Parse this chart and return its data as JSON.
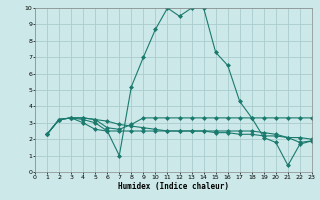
{
  "xlabel": "Humidex (Indice chaleur)",
  "bg_color": "#cce8e8",
  "grid_color": "#aacccc",
  "line_color": "#1a7a6e",
  "xlim": [
    0,
    23
  ],
  "ylim": [
    0,
    10
  ],
  "xticks": [
    0,
    1,
    2,
    3,
    4,
    5,
    6,
    7,
    8,
    9,
    10,
    11,
    12,
    13,
    14,
    15,
    16,
    17,
    18,
    19,
    20,
    21,
    22,
    23
  ],
  "yticks": [
    0,
    1,
    2,
    3,
    4,
    5,
    6,
    7,
    8,
    9,
    10
  ],
  "line1_x": [
    1,
    2,
    3,
    4,
    5,
    6,
    7,
    8,
    9,
    10,
    11,
    12,
    13,
    14,
    15,
    16,
    17,
    18,
    19,
    20,
    21,
    22,
    23
  ],
  "line1_y": [
    2.3,
    3.2,
    3.3,
    3.2,
    3.0,
    2.5,
    1.0,
    5.2,
    7.0,
    8.7,
    10.0,
    9.5,
    10.0,
    10.0,
    7.3,
    6.5,
    4.3,
    3.3,
    2.1,
    1.8,
    0.4,
    1.7,
    1.9
  ],
  "line2_x": [
    1,
    2,
    3,
    4,
    5,
    6,
    7,
    8,
    9,
    10,
    11,
    12,
    13,
    14,
    15,
    16,
    17,
    18,
    19,
    20,
    21,
    22,
    23
  ],
  "line2_y": [
    2.3,
    3.2,
    3.3,
    3.3,
    3.2,
    3.1,
    2.9,
    2.8,
    2.7,
    2.6,
    2.5,
    2.5,
    2.5,
    2.5,
    2.4,
    2.4,
    2.3,
    2.3,
    2.2,
    2.2,
    2.1,
    2.1,
    2.0
  ],
  "line3_x": [
    1,
    2,
    3,
    4,
    5,
    6,
    7,
    8,
    9,
    10,
    11,
    12,
    13,
    14,
    15,
    16,
    17,
    18,
    19,
    20,
    21,
    22,
    23
  ],
  "line3_y": [
    2.3,
    3.2,
    3.3,
    3.3,
    3.2,
    2.7,
    2.6,
    2.9,
    3.3,
    3.3,
    3.3,
    3.3,
    3.3,
    3.3,
    3.3,
    3.3,
    3.3,
    3.3,
    3.3,
    3.3,
    3.3,
    3.3,
    3.3
  ],
  "line4_x": [
    1,
    2,
    3,
    4,
    5,
    6,
    7,
    8,
    9,
    10,
    11,
    12,
    13,
    14,
    15,
    16,
    17,
    18,
    19,
    20,
    21,
    22,
    23
  ],
  "line4_y": [
    2.3,
    3.2,
    3.3,
    3.0,
    2.6,
    2.5,
    2.5,
    2.5,
    2.5,
    2.5,
    2.5,
    2.5,
    2.5,
    2.5,
    2.5,
    2.5,
    2.5,
    2.5,
    2.4,
    2.3,
    2.1,
    1.8,
    1.9
  ]
}
